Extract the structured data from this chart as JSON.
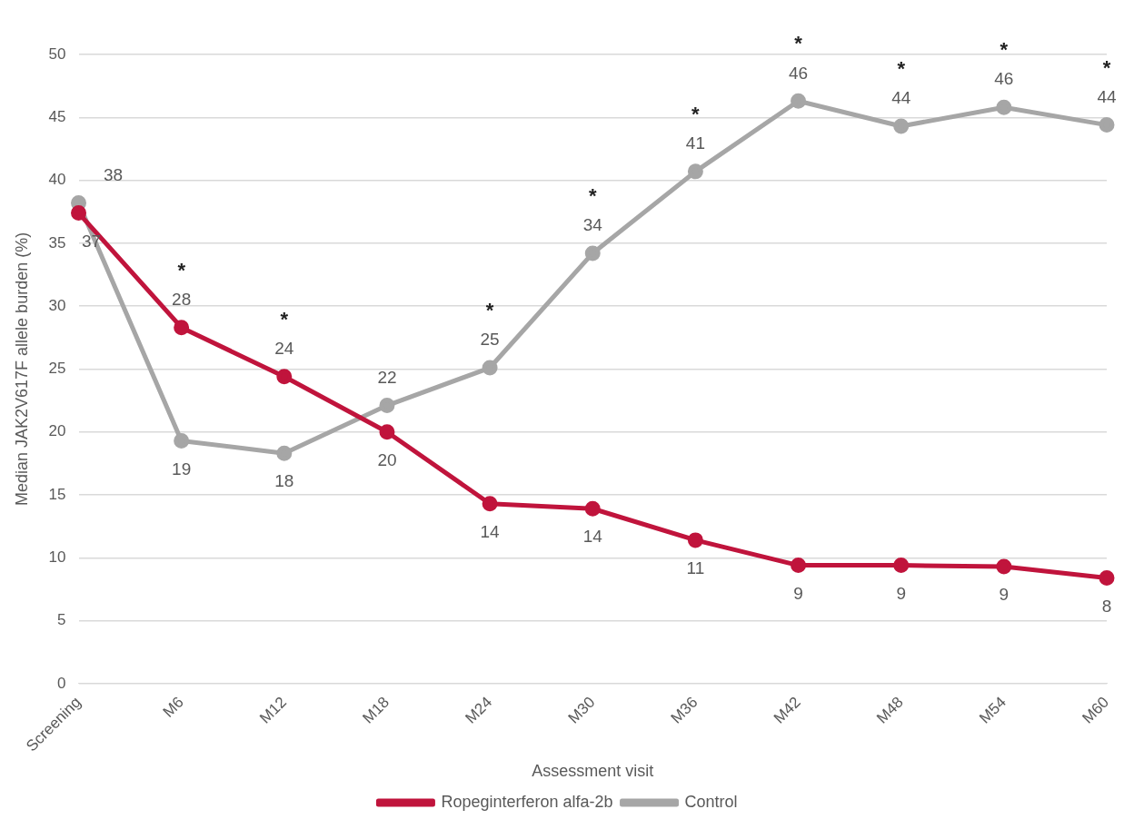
{
  "chart_data": {
    "type": "line",
    "xlabel": "Assessment visit",
    "ylabel": "Median JAK2V617F allele burden (%)",
    "categories": [
      "Screening",
      "M6",
      "M12",
      "M18",
      "M24",
      "M30",
      "M36",
      "M42",
      "M48",
      "M54",
      "M60"
    ],
    "series": [
      {
        "name": "Ropeginterferon alfa-2b",
        "color": "#c0143c",
        "values": [
          37.4,
          28.3,
          24.4,
          20,
          14.3,
          13.9,
          11.4,
          9.4,
          9.4,
          9.3,
          8.4
        ],
        "value_labels": [
          "37",
          "28",
          "24",
          "20",
          "14",
          "14",
          "11",
          "9",
          "9",
          "9",
          "8"
        ]
      },
      {
        "name": "Control",
        "color": "#a6a6a6",
        "values": [
          38.2,
          19.3,
          18.3,
          22.1,
          25.1,
          34.2,
          40.7,
          46.3,
          44.3,
          45.8,
          44.4
        ],
        "value_labels": [
          "38",
          "19",
          "18",
          "22",
          "25",
          "34",
          "41",
          "46",
          "44",
          "46",
          "44"
        ]
      }
    ],
    "ylim": [
      0,
      50
    ],
    "yticks": [
      0,
      5,
      10,
      15,
      20,
      25,
      30,
      35,
      40,
      45,
      50
    ],
    "grid": "y",
    "legend": "bottom",
    "marker": "circle",
    "line_style": "solid",
    "annotations": [
      {
        "text": "*",
        "x": "M6",
        "y": 28.3
      },
      {
        "text": "*",
        "x": "M12",
        "y": 24.4
      },
      {
        "text": "*",
        "x": "M24",
        "y": 25.1
      },
      {
        "text": "*",
        "x": "M30",
        "y": 34.2
      },
      {
        "text": "*",
        "x": "M36",
        "y": 40.7
      },
      {
        "text": "*",
        "x": "M42",
        "y": 46.3
      },
      {
        "text": "*",
        "x": "M48",
        "y": 44.3
      },
      {
        "text": "*",
        "x": "M54",
        "y": 45.8
      },
      {
        "text": "*",
        "x": "M60",
        "y": 44.4
      }
    ]
  }
}
